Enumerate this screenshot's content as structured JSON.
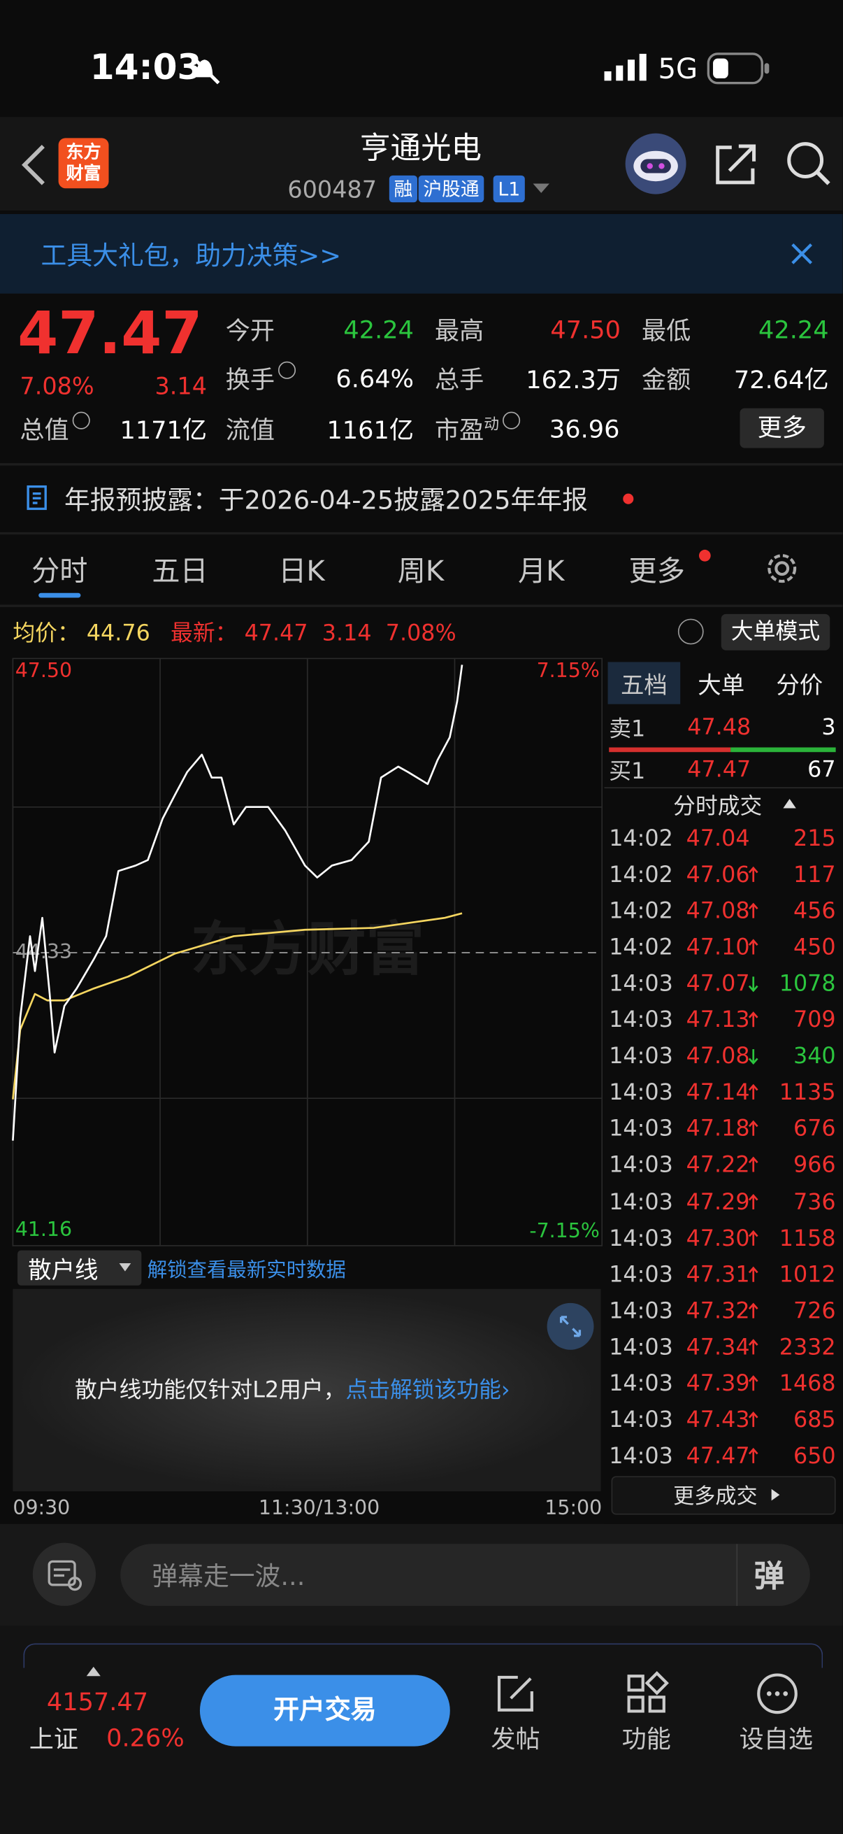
{
  "status_bar": {
    "time": "14:03",
    "network": "5G"
  },
  "header": {
    "logo": [
      "东方",
      "财富"
    ],
    "title": "亨通光电",
    "code": "600487",
    "tags": [
      "融",
      "沪股通",
      "L1"
    ]
  },
  "banner": {
    "text": "工具大礼包，助力决策>>"
  },
  "quote": {
    "price": "47.47",
    "change_pct": "7.08%",
    "change": "3.14",
    "stats": [
      {
        "label": "今开",
        "value": "42.24"
      },
      {
        "label": "最高",
        "value": "47.50"
      },
      {
        "label": "最低",
        "value": "42.24"
      },
      {
        "label": "换手",
        "value": "6.64%"
      },
      {
        "label": "总手",
        "value": "162.3万"
      },
      {
        "label": "金额",
        "value": "72.64亿"
      },
      {
        "label": "总值",
        "value": "1171亿"
      },
      {
        "label": "流值",
        "value": "1161亿"
      },
      {
        "label": "市盈",
        "sup": "动",
        "value": "36.96"
      }
    ],
    "more": "更多"
  },
  "notice": {
    "text": "年报预披露：于2026-04-25披露2025年年报"
  },
  "tabs": [
    "分时",
    "五日",
    "日K",
    "周K",
    "月K",
    "更多"
  ],
  "info_bar": {
    "avg_label": "均价：",
    "avg": "44.76",
    "latest_label": "最新：",
    "latest": "47.47",
    "change": "3.14",
    "change_pct": "7.08%",
    "mode_button": "大单模式"
  },
  "intraday_chart": {
    "type": "line",
    "ylim": [
      41.16,
      47.5
    ],
    "yticks": [
      {
        "value": 41.16,
        "label": "41.16"
      },
      {
        "value": 44.33,
        "label": "44.33"
      },
      {
        "value": 47.5,
        "label": "47.50"
      }
    ],
    "pct_labels": [
      "7.15%",
      "-7.15%"
    ],
    "x_labels": [
      "09:30",
      "11:30/13:00",
      "15:00"
    ],
    "watermark": "东方财富",
    "price_line": {
      "color": "#ffffff",
      "x": [
        "09:30",
        "09:33",
        "09:37",
        "09:39",
        "09:42",
        "09:45",
        "09:47",
        "09:51",
        "09:56",
        "10:03",
        "10:08",
        "10:13",
        "10:20",
        "10:25",
        "10:31",
        "10:36",
        "10:41",
        "10:47",
        "10:51",
        "10:55",
        "11:00",
        "11:05",
        "11:14",
        "11:21",
        "11:29",
        "13:04",
        "13:10",
        "13:18",
        "13:25",
        "13:30",
        "13:37",
        "13:41",
        "13:49",
        "13:53",
        "13:58",
        "14:01",
        "14:03"
      ],
      "values": [
        42.28,
        43.62,
        44.51,
        44.13,
        44.71,
        43.88,
        43.24,
        43.75,
        43.94,
        44.26,
        44.51,
        45.22,
        45.28,
        45.34,
        45.79,
        46.05,
        46.3,
        46.49,
        46.24,
        46.24,
        45.73,
        45.92,
        45.92,
        45.66,
        45.28,
        45.15,
        45.28,
        45.34,
        45.54,
        46.24,
        46.36,
        46.3,
        46.17,
        46.43,
        46.68,
        47.07,
        47.47
      ]
    },
    "avg_line": {
      "color": "#f5d660",
      "x": [
        "09:30",
        "09:33",
        "09:39",
        "09:44",
        "09:51",
        "10:03",
        "10:17",
        "10:36",
        "11:00",
        "11:29",
        "13:27",
        "13:56",
        "14:03"
      ],
      "values": [
        42.73,
        43.49,
        43.88,
        43.81,
        43.81,
        43.94,
        44.07,
        44.32,
        44.51,
        44.58,
        44.6,
        44.71,
        44.76
      ]
    }
  },
  "retail_line": {
    "selector": "散户线",
    "unlock_hint": "解锁查看最新实时数据",
    "notice": "散户线功能仅针对L2用户，",
    "link": "点击解锁该功能›"
  },
  "order_book": {
    "tabs": [
      "五档",
      "大单",
      "分价"
    ],
    "ask": {
      "label": "卖1",
      "price": "47.48",
      "volume": "3"
    },
    "bid": {
      "label": "买1",
      "price": "47.47",
      "volume": "67"
    },
    "trades_title": "分时成交",
    "trades": [
      {
        "time": "14:02",
        "price": "47.04",
        "dir": "none",
        "volume": "215"
      },
      {
        "time": "14:02",
        "price": "47.06",
        "dir": "up",
        "volume": "117"
      },
      {
        "time": "14:02",
        "price": "47.08",
        "dir": "up",
        "volume": "456"
      },
      {
        "time": "14:02",
        "price": "47.10",
        "dir": "up",
        "volume": "450"
      },
      {
        "time": "14:03",
        "price": "47.07",
        "dir": "down",
        "volume": "1078"
      },
      {
        "time": "14:03",
        "price": "47.13",
        "dir": "up",
        "volume": "709"
      },
      {
        "time": "14:03",
        "price": "47.08",
        "dir": "down",
        "volume": "340"
      },
      {
        "time": "14:03",
        "price": "47.14",
        "dir": "up",
        "volume": "1135"
      },
      {
        "time": "14:03",
        "price": "47.18",
        "dir": "up",
        "volume": "676"
      },
      {
        "time": "14:03",
        "price": "47.22",
        "dir": "up",
        "volume": "966"
      },
      {
        "time": "14:03",
        "price": "47.29",
        "dir": "up",
        "volume": "736"
      },
      {
        "time": "14:03",
        "price": "47.30",
        "dir": "up",
        "volume": "1158"
      },
      {
        "time": "14:03",
        "price": "47.31",
        "dir": "up",
        "volume": "1012"
      },
      {
        "time": "14:03",
        "price": "47.32",
        "dir": "up",
        "volume": "726"
      },
      {
        "time": "14:03",
        "price": "47.34",
        "dir": "up",
        "volume": "2332"
      },
      {
        "time": "14:03",
        "price": "47.39",
        "dir": "up",
        "volume": "1468"
      },
      {
        "time": "14:03",
        "price": "47.43",
        "dir": "up",
        "volume": "685"
      },
      {
        "time": "14:03",
        "price": "47.47",
        "dir": "up",
        "volume": "650"
      }
    ],
    "more": "更多成交"
  },
  "comment_bar": {
    "placeholder": "弹幕走一波...",
    "button": "弹"
  },
  "bottom_bar": {
    "index_value": "4157.47",
    "index_name": "上证",
    "index_change": "0.26%",
    "trade_button": "开户交易",
    "items": [
      "发帖",
      "功能",
      "设自选"
    ]
  }
}
